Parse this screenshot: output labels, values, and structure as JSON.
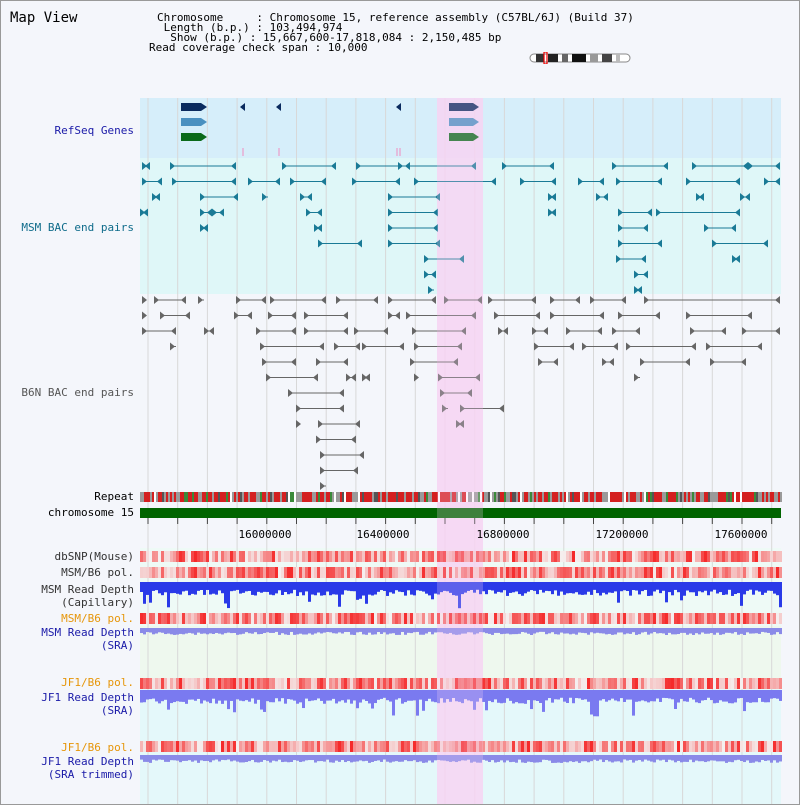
{
  "page": {
    "title": "Map View"
  },
  "header": {
    "line1": "Chromosome     : Chromosome 15, reference assembly (C57BL/6J) (Build 37)",
    "line2": " Length (b.p.) : 103,494,974",
    "line3": "  Show (b.p.) : 15,667,600-17,818,084 : 2,150,485 bp",
    "line4": "Read coverage check span : 10,000"
  },
  "tracks": {
    "refseq": "RefSeq Genes",
    "msm_bac": "MSM BAC end pairs",
    "b6n_bac": "B6N BAC end pairs",
    "repeat": "Repeat",
    "chromosome": "chromosome 15",
    "dbsnp": "dbSNP(Mouse)",
    "msm_b6_pol_1": "MSM/B6 pol.",
    "msm_depth_cap_1": "MSM Read Depth",
    "msm_depth_cap_2": "(Capillary)",
    "msm_b6_pol_2": "MSM/B6 pol.",
    "msm_depth_sra_1": "MSM Read Depth",
    "msm_depth_sra_2": "(SRA)",
    "jf1_b6_pol_1": "JF1/B6 pol.",
    "jf1_depth_sra_1": "JF1 Read Depth",
    "jf1_depth_sra_2": "(SRA)",
    "jf1_b6_pol_2": "JF1/B6 pol.",
    "jf1_depth_trim_1": "JF1 Read Depth",
    "jf1_depth_trim_2": "(SRA trimmed)"
  },
  "axis": {
    "ticks": [
      "16000000",
      "16400000",
      "16800000",
      "17200000",
      "17600000"
    ],
    "tick_values": [
      16000000,
      16400000,
      16800000,
      17200000,
      17600000
    ],
    "range": [
      15667600,
      17818084
    ]
  },
  "colors": {
    "refseq_label": "#1a1aa8",
    "msm_label": "#0e6b8a",
    "b6n_label": "#555555",
    "orange_label": "#e6960a",
    "blue_label": "#1a1aa8",
    "highlight": "#f6d4f2",
    "refseq_bg": "#d6eefa",
    "msm_bg": "#dff7f8",
    "chrom_green": "#006400"
  }
}
